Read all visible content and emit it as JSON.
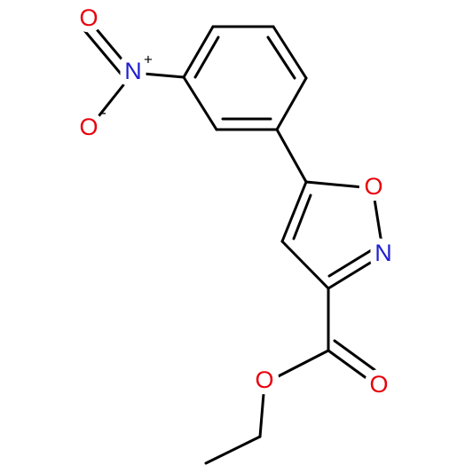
{
  "atoms": [
    {
      "label": "O"
    },
    {
      "label": "N",
      "charge": "+"
    },
    {
      "label": "O",
      "charge": "-"
    },
    {
      "label": "O"
    },
    {
      "label": "N"
    },
    {
      "label": "O"
    },
    {
      "label": "O"
    }
  ]
}
